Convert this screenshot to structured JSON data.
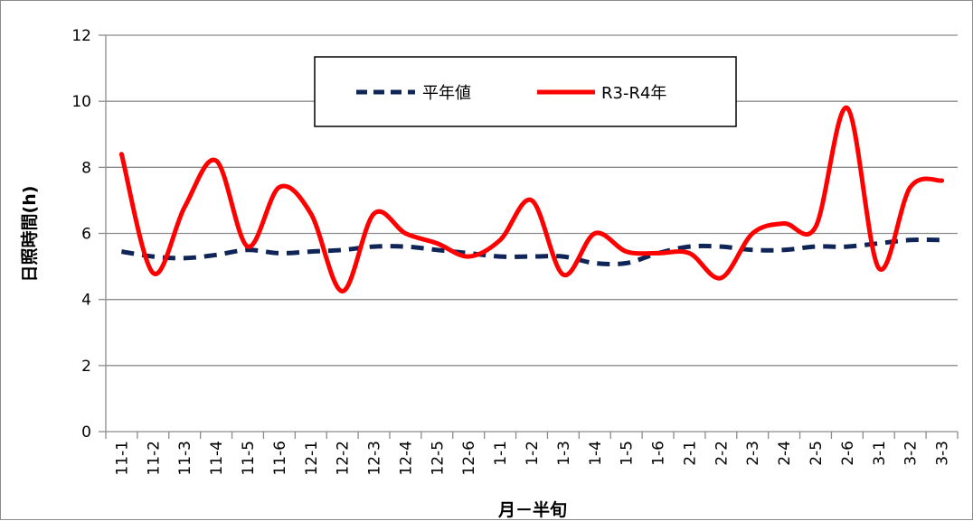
{
  "chart_data": {
    "type": "line",
    "xlabel": "月－半旬",
    "ylabel": "日照時間(h)",
    "ylim": [
      0,
      12
    ],
    "yticks": [
      0,
      2,
      4,
      6,
      8,
      10,
      12
    ],
    "grid": true,
    "legend_position": "top-center",
    "categories": [
      "11-1",
      "11-2",
      "11-3",
      "11-4",
      "11-5",
      "11-6",
      "12-1",
      "12-2",
      "12-3",
      "12-4",
      "12-5",
      "12-6",
      "1-1",
      "1-2",
      "1-3",
      "1-4",
      "1-5",
      "1-6",
      "2-1",
      "2-2",
      "2-3",
      "2-4",
      "2-5",
      "2-6",
      "3-1",
      "3-2",
      "3-3"
    ],
    "series": [
      {
        "name": "平年値",
        "color": "#0f2557",
        "style": "dashed",
        "values": [
          5.45,
          5.3,
          5.25,
          5.35,
          5.5,
          5.4,
          5.45,
          5.5,
          5.6,
          5.6,
          5.5,
          5.4,
          5.3,
          5.3,
          5.3,
          5.1,
          5.1,
          5.4,
          5.6,
          5.6,
          5.5,
          5.5,
          5.6,
          5.6,
          5.7,
          5.8,
          5.8
        ]
      },
      {
        "name": "R3-R4年",
        "color": "#ff0000",
        "style": "solid",
        "values": [
          8.4,
          4.8,
          6.8,
          8.2,
          5.6,
          7.4,
          6.6,
          4.25,
          6.6,
          6.0,
          5.7,
          5.3,
          5.8,
          7.0,
          4.75,
          6.0,
          5.45,
          5.4,
          5.4,
          4.65,
          6.0,
          6.3,
          6.2,
          9.8,
          4.95,
          7.4,
          7.6
        ]
      }
    ]
  }
}
